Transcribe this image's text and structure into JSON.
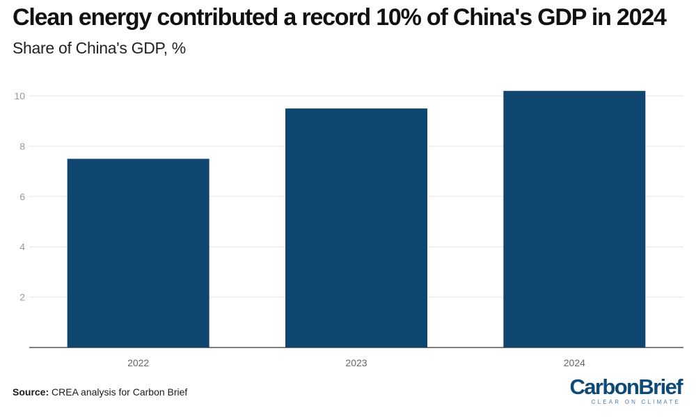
{
  "title": "Clean energy contributed a record 10% of China's GDP in 2024",
  "subtitle": "Share of China's GDP, %",
  "source_label": "Source:",
  "source_text": "CREA analysis for Carbon Brief",
  "logo": {
    "wordmark": "CarbonBrief",
    "tagline": "CLEAR ON CLIMATE"
  },
  "colors": {
    "bar": "#0e4670",
    "grid": "#e6e6e6",
    "axis": "#333333",
    "tick_text": "#9a9a9a",
    "logo": "#0e4a78"
  },
  "chart_data": {
    "type": "bar",
    "categories": [
      "2022",
      "2023",
      "2024"
    ],
    "values": [
      7.5,
      9.5,
      10.2
    ],
    "yticks": [
      2,
      4,
      6,
      8,
      10
    ],
    "ylim": [
      0,
      11
    ],
    "xlabel": "",
    "ylabel": "",
    "grid": true
  }
}
